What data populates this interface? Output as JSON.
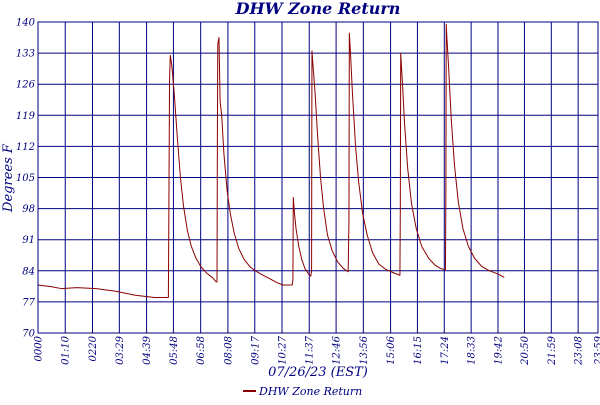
{
  "chart_data": {
    "type": "line",
    "title": "DHW Zone Return",
    "xlabel": "07/26/23 (EST)",
    "ylabel": "Degrees F",
    "ylim": [
      70,
      140
    ],
    "yticks": [
      70,
      77,
      84,
      91,
      98,
      105,
      112,
      119,
      126,
      133,
      140
    ],
    "xlim_minutes": [
      0,
      1439
    ],
    "xticks": [
      {
        "label": "0000",
        "minute": 0
      },
      {
        "label": "01:10",
        "minute": 70
      },
      {
        "label": "0220",
        "minute": 140
      },
      {
        "label": "03:29",
        "minute": 209
      },
      {
        "label": "04:39",
        "minute": 279
      },
      {
        "label": "05:48",
        "minute": 348
      },
      {
        "label": "06:58",
        "minute": 418
      },
      {
        "label": "08:08",
        "minute": 488
      },
      {
        "label": "09:17",
        "minute": 557
      },
      {
        "label": "10:27",
        "minute": 627
      },
      {
        "label": "11:37",
        "minute": 697
      },
      {
        "label": "12:46",
        "minute": 766
      },
      {
        "label": "13:56",
        "minute": 836
      },
      {
        "label": "15:06",
        "minute": 906
      },
      {
        "label": "16:15",
        "minute": 975
      },
      {
        "label": "17:24",
        "minute": 1044
      },
      {
        "label": "18:33",
        "minute": 1113
      },
      {
        "label": "19:42",
        "minute": 1182
      },
      {
        "label": "20:50",
        "minute": 1250
      },
      {
        "label": "21:59",
        "minute": 1319
      },
      {
        "label": "23:08",
        "minute": 1388
      },
      {
        "label": "23:59",
        "minute": 1439
      }
    ],
    "grid": true,
    "legend_position": "bottom-center",
    "series": [
      {
        "name": "DHW Zone Return",
        "color": "#8b0000",
        "points": [
          [
            0,
            80.8
          ],
          [
            35,
            80.4
          ],
          [
            60,
            80.0
          ],
          [
            100,
            80.2
          ],
          [
            150,
            80.0
          ],
          [
            200,
            79.4
          ],
          [
            250,
            78.5
          ],
          [
            300,
            78.0
          ],
          [
            335,
            78.0
          ],
          [
            336,
            93
          ],
          [
            338,
            127
          ],
          [
            340,
            132.5
          ],
          [
            344,
            130
          ],
          [
            350,
            124
          ],
          [
            358,
            114
          ],
          [
            366,
            105
          ],
          [
            374,
            98.5
          ],
          [
            384,
            93
          ],
          [
            394,
            89.5
          ],
          [
            405,
            87
          ],
          [
            418,
            85
          ],
          [
            433,
            83.5
          ],
          [
            448,
            82.5
          ],
          [
            458,
            81.5
          ],
          [
            460,
            81.5
          ],
          [
            461,
            115
          ],
          [
            462,
            135
          ],
          [
            465,
            136.5
          ],
          [
            468,
            122
          ],
          [
            472,
            119
          ],
          [
            478,
            110
          ],
          [
            486,
            102
          ],
          [
            494,
            97
          ],
          [
            504,
            92.5
          ],
          [
            516,
            89
          ],
          [
            530,
            86.5
          ],
          [
            546,
            84.8
          ],
          [
            562,
            83.8
          ],
          [
            578,
            83.0
          ],
          [
            596,
            82.2
          ],
          [
            615,
            81.3
          ],
          [
            630,
            80.8
          ],
          [
            653,
            80.8
          ],
          [
            655,
            82
          ],
          [
            656,
            100.5
          ],
          [
            659,
            97
          ],
          [
            663,
            93.5
          ],
          [
            670,
            89.5
          ],
          [
            678,
            86.5
          ],
          [
            686,
            84.5
          ],
          [
            696,
            83.2
          ],
          [
            701,
            82.8
          ],
          [
            703,
            84
          ],
          [
            704,
            133.5
          ],
          [
            706,
            131
          ],
          [
            712,
            124
          ],
          [
            718,
            115
          ],
          [
            726,
            105
          ],
          [
            734,
            98
          ],
          [
            744,
            92
          ],
          [
            756,
            88.5
          ],
          [
            770,
            86
          ],
          [
            785,
            84.5
          ],
          [
            797,
            83.8
          ],
          [
            799,
            95
          ],
          [
            800,
            137.5
          ],
          [
            803,
            133
          ],
          [
            808,
            124
          ],
          [
            816,
            112
          ],
          [
            824,
            104
          ],
          [
            834,
            97
          ],
          [
            846,
            92
          ],
          [
            860,
            88
          ],
          [
            876,
            85.5
          ],
          [
            894,
            84.3
          ],
          [
            915,
            83.5
          ],
          [
            930,
            83.0
          ],
          [
            931,
            98
          ],
          [
            932,
            133
          ],
          [
            936,
            127
          ],
          [
            942,
            117
          ],
          [
            950,
            107
          ],
          [
            960,
            99
          ],
          [
            972,
            93.5
          ],
          [
            986,
            89.5
          ],
          [
            1004,
            86.8
          ],
          [
            1020,
            85.3
          ],
          [
            1035,
            84.5
          ],
          [
            1047,
            84.2
          ],
          [
            1048,
            100
          ],
          [
            1049,
            139.5
          ],
          [
            1051,
            136
          ],
          [
            1055,
            130
          ],
          [
            1062,
            118
          ],
          [
            1070,
            108
          ],
          [
            1080,
            99.5
          ],
          [
            1092,
            93.5
          ],
          [
            1106,
            89.5
          ],
          [
            1122,
            86.8
          ],
          [
            1140,
            85.0
          ],
          [
            1160,
            84.0
          ],
          [
            1182,
            83.3
          ],
          [
            1198,
            82.5
          ]
        ]
      }
    ]
  }
}
